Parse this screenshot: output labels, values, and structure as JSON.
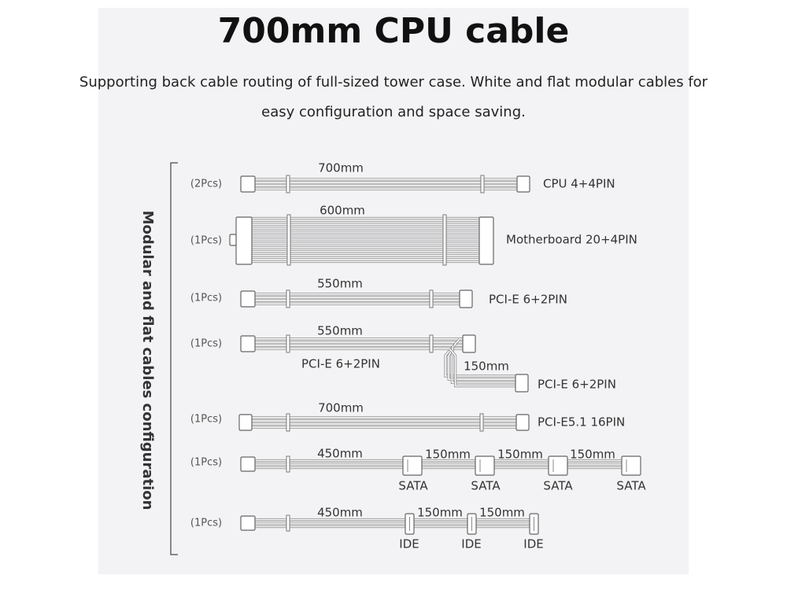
{
  "title": "700mm CPU cable",
  "subtitle": [
    "Supporting back cable routing of full-sized tower case. White and flat modular cables for",
    "easy configuration and space saving."
  ],
  "side_label": "Modular and flat cables configuration",
  "cables": [
    {
      "quantity": "(2Pcs)",
      "lengths": [
        "700mm"
      ],
      "connectors": [
        "CPU 4+4PIN"
      ]
    },
    {
      "quantity": "(1Pcs)",
      "lengths": [
        "600mm"
      ],
      "connectors": [
        "Motherboard 20+4PIN"
      ]
    },
    {
      "quantity": "(1Pcs)",
      "lengths": [
        "550mm"
      ],
      "connectors": [
        "PCI-E 6+2PIN"
      ]
    },
    {
      "quantity": "(1Pcs)",
      "lengths": [
        "550mm",
        "150mm"
      ],
      "connectors": [
        "PCI-E 6+2PIN",
        "PCI-E 6+2PIN"
      ]
    },
    {
      "quantity": "(1Pcs)",
      "lengths": [
        "700mm"
      ],
      "connectors": [
        "PCI-E5.1 16PIN"
      ]
    },
    {
      "quantity": "(1Pcs)",
      "lengths": [
        "450mm",
        "150mm",
        "150mm",
        "150mm"
      ],
      "connectors": [
        "SATA",
        "SATA",
        "SATA",
        "SATA"
      ]
    },
    {
      "quantity": "(1Pcs)",
      "lengths": [
        "450mm",
        "150mm",
        "150mm"
      ],
      "connectors": [
        "IDE",
        "IDE",
        "IDE"
      ]
    }
  ]
}
